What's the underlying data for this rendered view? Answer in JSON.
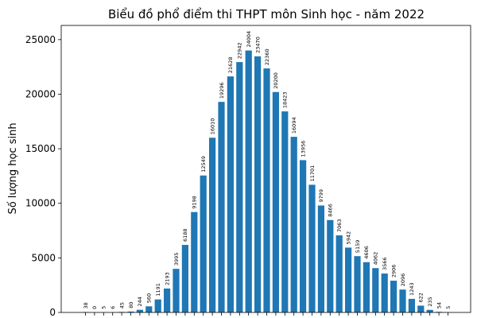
{
  "chart_data": {
    "type": "bar",
    "title": "Biểu đồ phổ điểm thi THPT môn Sinh học - năm 2022",
    "xlabel": "",
    "ylabel": "Số lượng học sinh",
    "ylim": [
      0,
      26300
    ],
    "yticks": [
      0,
      5000,
      10000,
      15000,
      20000,
      25000
    ],
    "ytick_labels": [
      "0",
      "5000",
      "10000",
      "15000",
      "20000",
      "25000"
    ],
    "grid": false,
    "bar_color": "#1f77b4",
    "values": [
      38,
      0,
      5,
      6,
      45,
      80,
      244,
      560,
      1191,
      2193,
      3995,
      6188,
      9198,
      12549,
      16010,
      19296,
      21628,
      22942,
      24004,
      23470,
      22360,
      20200,
      18423,
      16094,
      13956,
      11701,
      9799,
      8466,
      7063,
      5942,
      5159,
      4606,
      4062,
      3566,
      2906,
      2096,
      1243,
      622,
      235,
      54,
      5
    ],
    "data_labels": [
      "38",
      "0",
      "5",
      "6",
      "45",
      "80",
      "244",
      "560",
      "1191",
      "2193",
      "3995",
      "6188",
      "9198",
      "12549",
      "16010",
      "19296",
      "21628",
      "22942",
      "24004",
      "23470",
      "22360",
      "20200",
      "18423",
      "16094",
      "13956",
      "11701",
      "9799",
      "8466",
      "7063",
      "5942",
      "5159",
      "4606",
      "4062",
      "3566",
      "2906",
      "2096",
      "1243",
      "622",
      "235",
      "54",
      "5"
    ]
  }
}
